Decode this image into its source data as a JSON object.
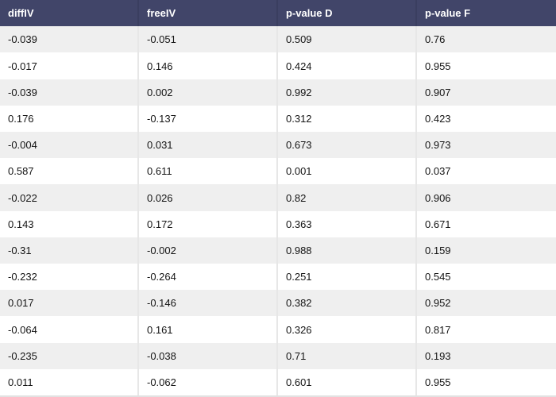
{
  "table": {
    "columns": [
      "diffIV",
      "freeIV",
      "p-value D",
      "p-value F"
    ],
    "rows": [
      [
        "-0.039",
        "-0.051",
        "0.509",
        "0.76"
      ],
      [
        "-0.017",
        "0.146",
        "0.424",
        "0.955"
      ],
      [
        "-0.039",
        "0.002",
        "0.992",
        "0.907"
      ],
      [
        "0.176",
        "-0.137",
        "0.312",
        "0.423"
      ],
      [
        "-0.004",
        "0.031",
        "0.673",
        "0.973"
      ],
      [
        "0.587",
        "0.611",
        "0.001",
        "0.037"
      ],
      [
        "-0.022",
        "0.026",
        "0.82",
        "0.906"
      ],
      [
        "0.143",
        "0.172",
        "0.363",
        "0.671"
      ],
      [
        "-0.31",
        "-0.002",
        "0.988",
        "0.159"
      ],
      [
        "-0.232",
        "-0.264",
        "0.251",
        "0.545"
      ],
      [
        "0.017",
        "-0.146",
        "0.382",
        "0.952"
      ],
      [
        "-0.064",
        "0.161",
        "0.326",
        "0.817"
      ],
      [
        "-0.235",
        "-0.038",
        "0.71",
        "0.193"
      ],
      [
        "0.011",
        "-0.062",
        "0.601",
        "0.955"
      ]
    ],
    "colors": {
      "header_bg": "#414569",
      "header_text": "#ffffff",
      "header_divider": "#3a3e60",
      "stripe_row_bg": "#efefef",
      "plain_row_bg": "#ffffff",
      "body_text": "#141414",
      "column_divider": "#e7e7e7",
      "bottom_border": "#e2e2e2"
    }
  }
}
